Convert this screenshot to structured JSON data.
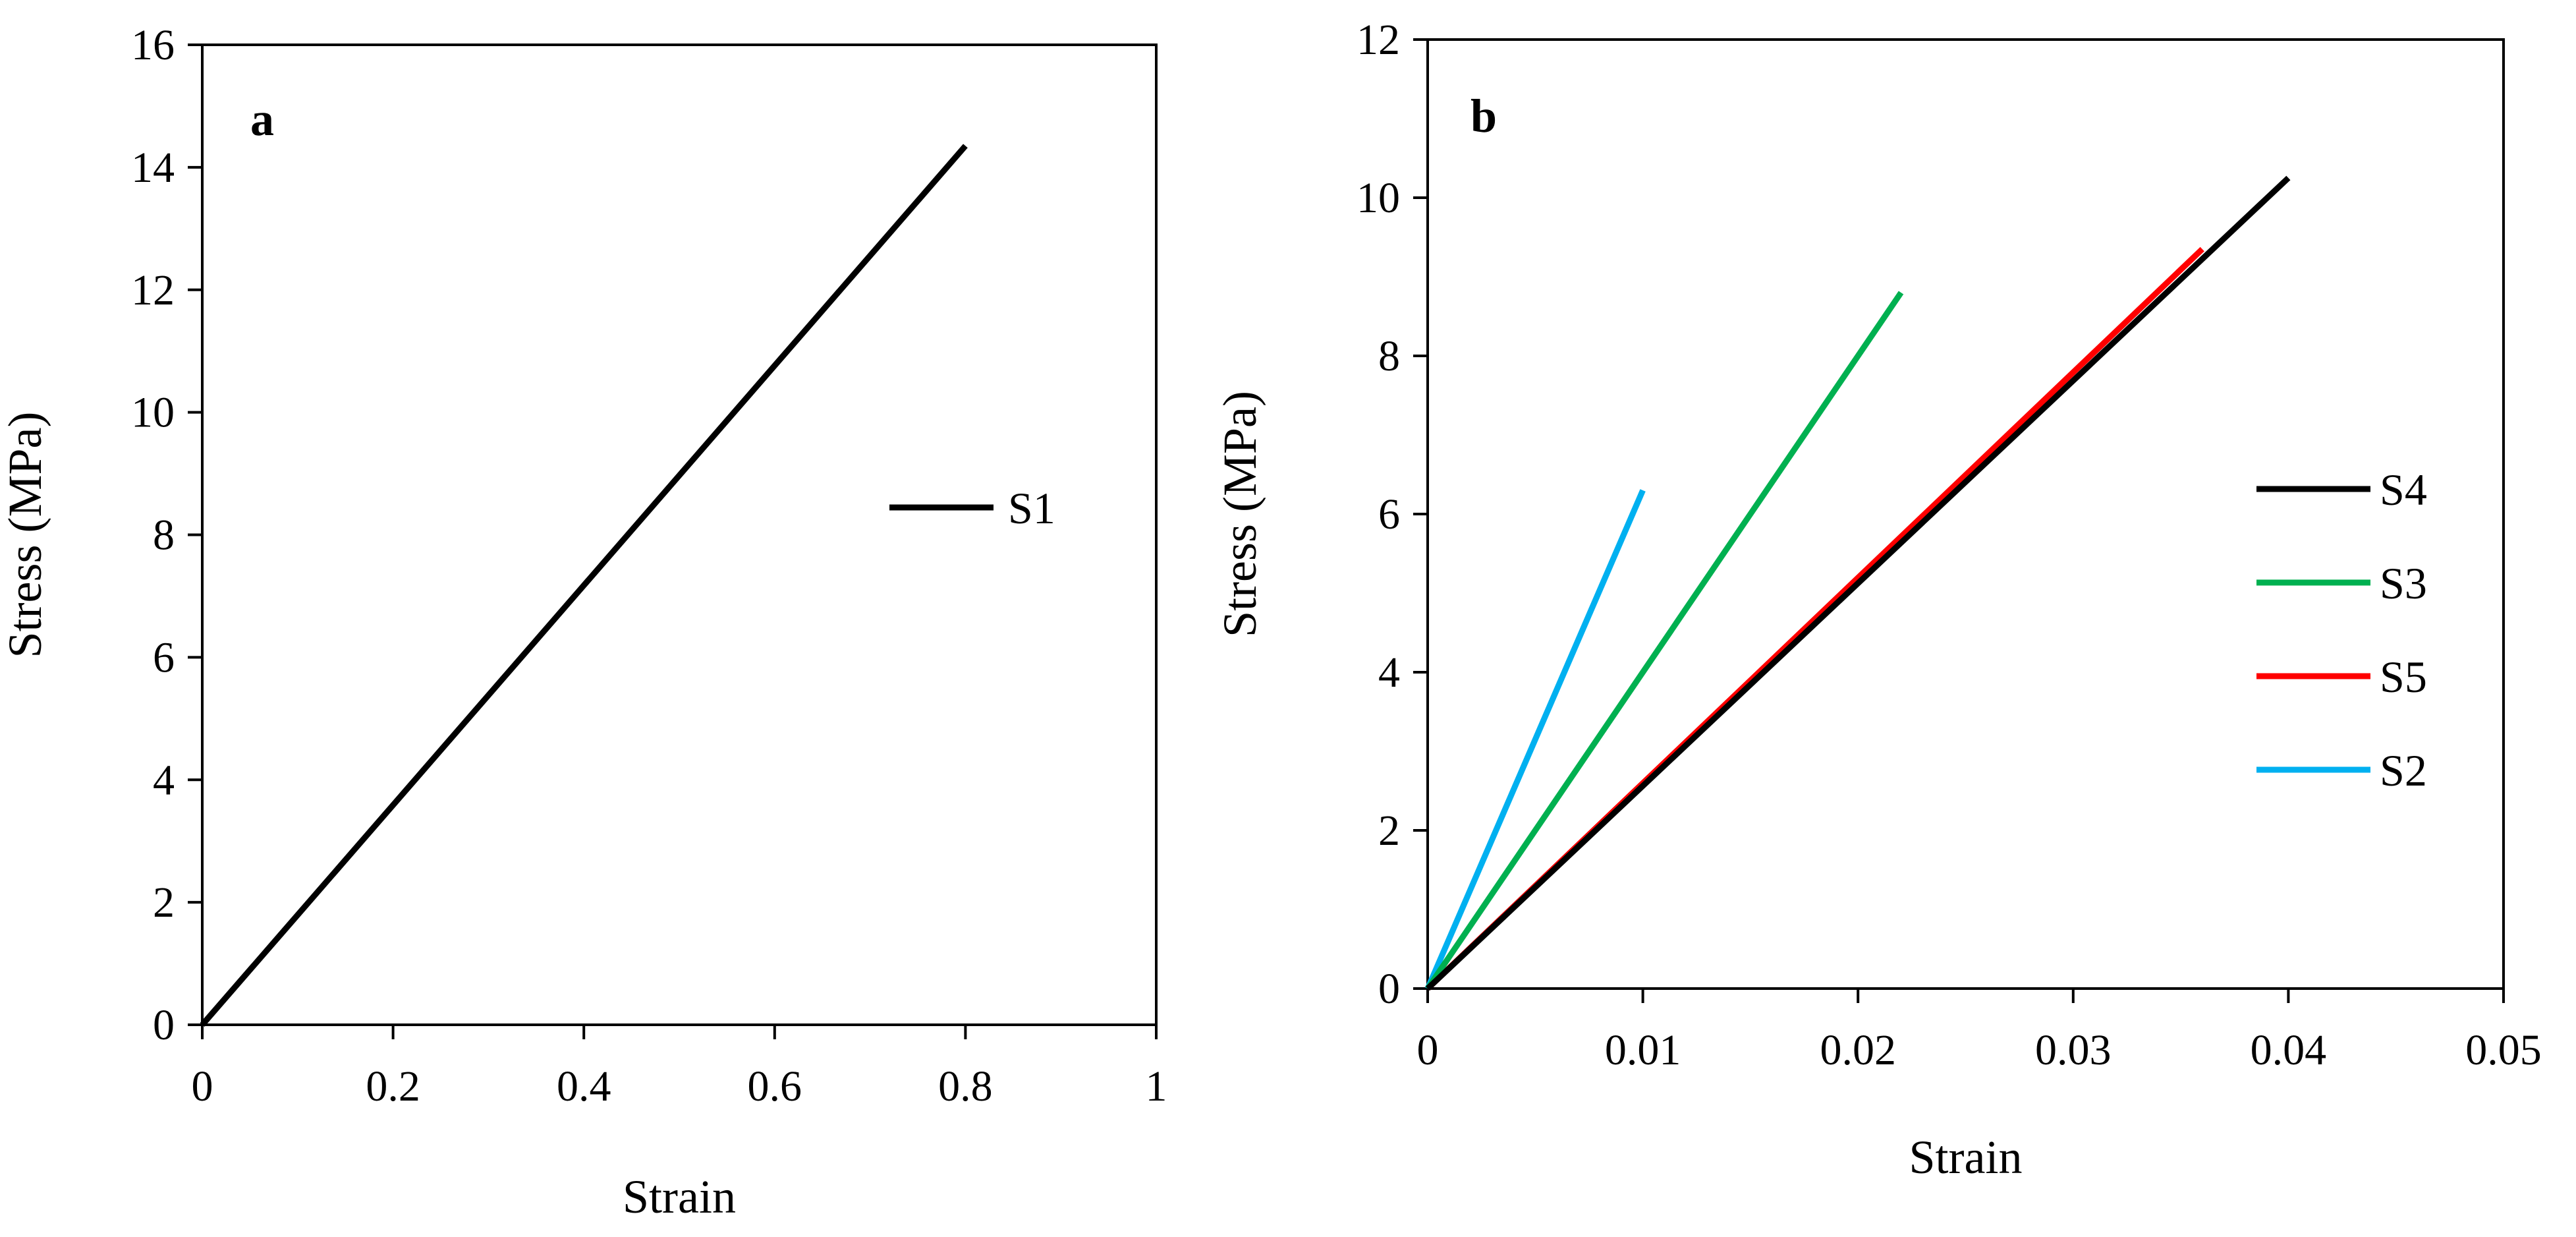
{
  "chart_data": [
    {
      "type": "line",
      "panel_label": "a",
      "xlabel": "Strain",
      "ylabel": "Stress (MPa)",
      "xlim": [
        0,
        1
      ],
      "ylim": [
        0,
        16
      ],
      "xticks": [
        0,
        0.2,
        0.4,
        0.6,
        0.8,
        1
      ],
      "xtick_labels": [
        "0",
        "0.2",
        "0.4",
        "0.6",
        "0.8",
        "1"
      ],
      "yticks": [
        0,
        2,
        4,
        6,
        8,
        10,
        12,
        14,
        16
      ],
      "ytick_labels": [
        "0",
        "2",
        "4",
        "6",
        "8",
        "10",
        "12",
        "14",
        "16"
      ],
      "grid": false,
      "legend_position": "right",
      "series": [
        {
          "name": "S1",
          "color": "#000000",
          "x": [
            0,
            0.8
          ],
          "y": [
            0,
            14.35
          ]
        }
      ]
    },
    {
      "type": "line",
      "panel_label": "b",
      "xlabel": "Strain",
      "ylabel": "Stress (MPa)",
      "xlim": [
        0,
        0.05
      ],
      "ylim": [
        0,
        12
      ],
      "xticks": [
        0,
        0.01,
        0.02,
        0.03,
        0.04,
        0.05
      ],
      "xtick_labels": [
        "0",
        "0.01",
        "0.02",
        "0.03",
        "0.04",
        "0.05"
      ],
      "yticks": [
        0,
        2,
        4,
        6,
        8,
        10,
        12
      ],
      "ytick_labels": [
        "0",
        "2",
        "4",
        "6",
        "8",
        "10",
        "12"
      ],
      "grid": false,
      "legend_position": "right",
      "series": [
        {
          "name": "S4",
          "color": "#000000",
          "x": [
            0,
            0.04
          ],
          "y": [
            0,
            10.25
          ]
        },
        {
          "name": "S3",
          "color": "#00b050",
          "x": [
            0,
            0.022
          ],
          "y": [
            0,
            8.8
          ]
        },
        {
          "name": "S5",
          "color": "#ff0000",
          "x": [
            0,
            0.036
          ],
          "y": [
            0,
            9.35
          ]
        },
        {
          "name": "S2",
          "color": "#00b0f0",
          "x": [
            0,
            0.01
          ],
          "y": [
            0,
            6.3
          ]
        }
      ]
    }
  ]
}
